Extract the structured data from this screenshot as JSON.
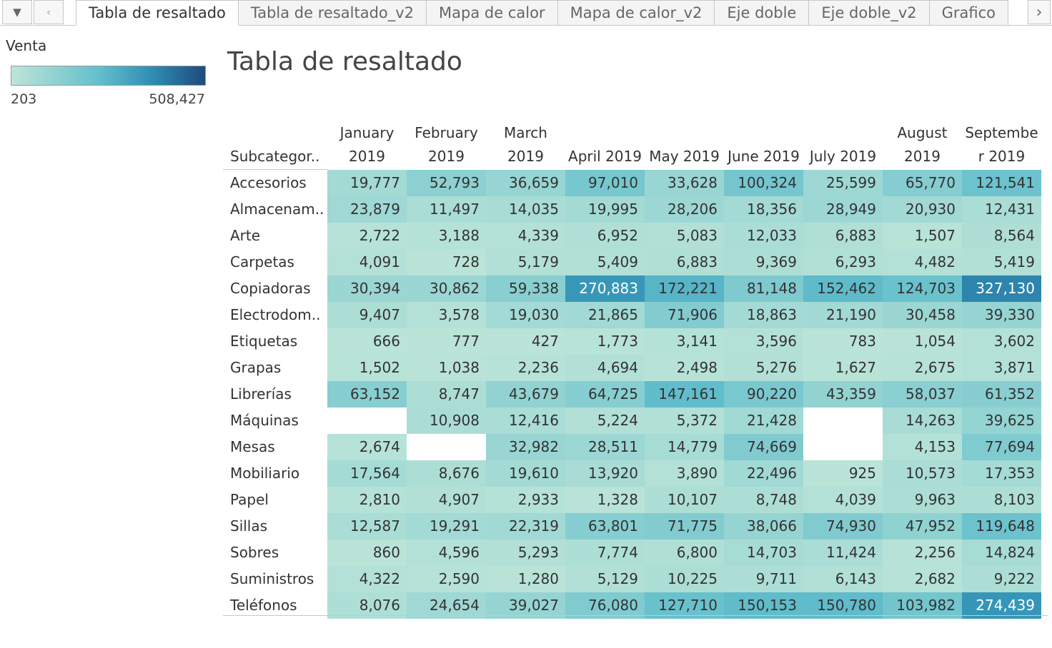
{
  "tabs": {
    "items": [
      "Tabla de resaltado",
      "Tabla de resaltado_v2",
      "Mapa de calor",
      "Mapa de calor_v2",
      "Eje doble",
      "Eje doble_v2",
      "Grafico"
    ],
    "active": 0
  },
  "legend": {
    "title": "Venta",
    "min": "203",
    "max": "508,427",
    "colors": [
      "#bde5d8",
      "#64bfcc",
      "#2f8fb5",
      "#1f4a7d"
    ]
  },
  "sheet": {
    "title": "Tabla de resaltado"
  },
  "chart_data": {
    "type": "heatmap",
    "row_header": "Subcategor..",
    "columns": [
      [
        "January",
        "2019"
      ],
      [
        "February",
        "2019"
      ],
      [
        "March",
        "2019"
      ],
      [
        "April 2019"
      ],
      [
        "May 2019"
      ],
      [
        "June 2019"
      ],
      [
        "July 2019"
      ],
      [
        "August",
        "2019"
      ],
      [
        "Septembe",
        "r 2019"
      ]
    ],
    "value_min": 203,
    "value_max": 508427,
    "rows": [
      {
        "label": "Accesorios",
        "values": [
          19777,
          52793,
          36659,
          97010,
          33628,
          100324,
          25599,
          65770,
          121541
        ],
        "display": [
          "19,777",
          "52,793",
          "36,659",
          "97,010",
          "33,628",
          "100,324",
          "25,599",
          "65,770",
          "121,541"
        ]
      },
      {
        "label": "Almacenam..",
        "values": [
          23879,
          11497,
          14035,
          19995,
          28206,
          18356,
          28949,
          20930,
          12431
        ],
        "display": [
          "23,879",
          "11,497",
          "14,035",
          "19,995",
          "28,206",
          "18,356",
          "28,949",
          "20,930",
          "12,431"
        ]
      },
      {
        "label": "Arte",
        "values": [
          2722,
          3188,
          4339,
          6952,
          5083,
          12033,
          6883,
          1507,
          8564
        ],
        "display": [
          "2,722",
          "3,188",
          "4,339",
          "6,952",
          "5,083",
          "12,033",
          "6,883",
          "1,507",
          "8,564"
        ]
      },
      {
        "label": "Carpetas",
        "values": [
          4091,
          728,
          5179,
          5409,
          6883,
          9369,
          6293,
          4482,
          5419
        ],
        "display": [
          "4,091",
          "728",
          "5,179",
          "5,409",
          "6,883",
          "9,369",
          "6,293",
          "4,482",
          "5,419"
        ]
      },
      {
        "label": "Copiadoras",
        "values": [
          30394,
          30862,
          59338,
          270883,
          172221,
          81148,
          152462,
          124703,
          327130
        ],
        "display": [
          "30,394",
          "30,862",
          "59,338",
          "270,883",
          "172,221",
          "81,148",
          "152,462",
          "124,703",
          "327,130"
        ]
      },
      {
        "label": "Electrodom..",
        "values": [
          9407,
          3578,
          19030,
          21865,
          71906,
          18863,
          21190,
          30458,
          39330
        ],
        "display": [
          "9,407",
          "3,578",
          "19,030",
          "21,865",
          "71,906",
          "18,863",
          "21,190",
          "30,458",
          "39,330"
        ]
      },
      {
        "label": "Etiquetas",
        "values": [
          666,
          777,
          427,
          1773,
          3141,
          3596,
          783,
          1054,
          3602
        ],
        "display": [
          "666",
          "777",
          "427",
          "1,773",
          "3,141",
          "3,596",
          "783",
          "1,054",
          "3,602"
        ]
      },
      {
        "label": "Grapas",
        "values": [
          1502,
          1038,
          2236,
          4694,
          2498,
          5276,
          1627,
          2675,
          3871
        ],
        "display": [
          "1,502",
          "1,038",
          "2,236",
          "4,694",
          "2,498",
          "5,276",
          "1,627",
          "2,675",
          "3,871"
        ]
      },
      {
        "label": "Librerías",
        "values": [
          63152,
          8747,
          43679,
          64725,
          147161,
          90220,
          43359,
          58037,
          61352
        ],
        "display": [
          "63,152",
          "8,747",
          "43,679",
          "64,725",
          "147,161",
          "90,220",
          "43,359",
          "58,037",
          "61,352"
        ]
      },
      {
        "label": "Máquinas",
        "values": [
          null,
          10908,
          12416,
          5224,
          5372,
          21428,
          null,
          14263,
          39625
        ],
        "display": [
          "",
          "10,908",
          "12,416",
          "5,224",
          "5,372",
          "21,428",
          "",
          "14,263",
          "39,625"
        ]
      },
      {
        "label": "Mesas",
        "values": [
          2674,
          null,
          32982,
          28511,
          14779,
          74669,
          null,
          4153,
          77694
        ],
        "display": [
          "2,674",
          "",
          "32,982",
          "28,511",
          "14,779",
          "74,669",
          "",
          "4,153",
          "77,694"
        ]
      },
      {
        "label": "Mobiliario",
        "values": [
          17564,
          8676,
          19610,
          13920,
          3890,
          22496,
          925,
          10573,
          17353
        ],
        "display": [
          "17,564",
          "8,676",
          "19,610",
          "13,920",
          "3,890",
          "22,496",
          "925",
          "10,573",
          "17,353"
        ]
      },
      {
        "label": "Papel",
        "values": [
          2810,
          4907,
          2933,
          1328,
          10107,
          8748,
          4039,
          9963,
          8103
        ],
        "display": [
          "2,810",
          "4,907",
          "2,933",
          "1,328",
          "10,107",
          "8,748",
          "4,039",
          "9,963",
          "8,103"
        ]
      },
      {
        "label": "Sillas",
        "values": [
          12587,
          19291,
          22319,
          63801,
          71775,
          38066,
          74930,
          47952,
          119648
        ],
        "display": [
          "12,587",
          "19,291",
          "22,319",
          "63,801",
          "71,775",
          "38,066",
          "74,930",
          "47,952",
          "119,648"
        ]
      },
      {
        "label": "Sobres",
        "values": [
          860,
          4596,
          5293,
          7774,
          6800,
          14703,
          11424,
          2256,
          14824
        ],
        "display": [
          "860",
          "4,596",
          "5,293",
          "7,774",
          "6,800",
          "14,703",
          "11,424",
          "2,256",
          "14,824"
        ]
      },
      {
        "label": "Suministros",
        "values": [
          4322,
          2590,
          1280,
          5129,
          10225,
          9711,
          6143,
          2682,
          9222
        ],
        "display": [
          "4,322",
          "2,590",
          "1,280",
          "5,129",
          "10,225",
          "9,711",
          "6,143",
          "2,682",
          "9,222"
        ]
      },
      {
        "label": "Teléfonos",
        "values": [
          8076,
          24654,
          39027,
          76080,
          127710,
          150153,
          150780,
          103982,
          274439
        ],
        "display": [
          "8,076",
          "24,654",
          "39,027",
          "76,080",
          "127,710",
          "150,153",
          "150,780",
          "103,982",
          "274,439"
        ]
      }
    ]
  }
}
